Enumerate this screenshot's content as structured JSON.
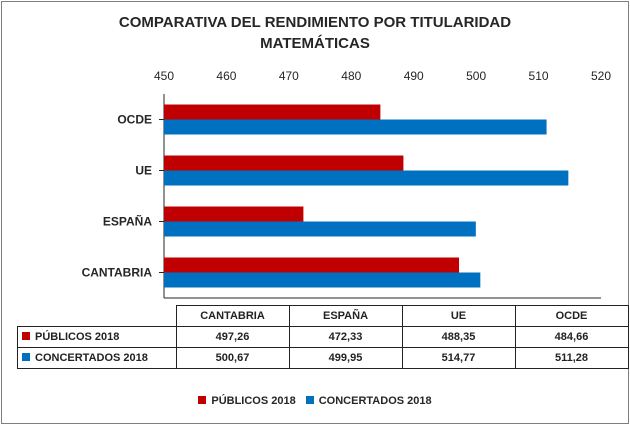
{
  "chart_data": {
    "type": "bar",
    "orientation": "horizontal",
    "title": "COMPARATIVA DEL RENDIMIENTO POR TITULARIDAD",
    "subtitle": "MATEMÁTICAS",
    "categories": [
      "CANTABRIA",
      "ESPAÑA",
      "UE",
      "OCDE"
    ],
    "series": [
      {
        "name": "PÚBLICOS 2018",
        "color": "#c00000",
        "values": [
          497.26,
          472.33,
          488.35,
          484.66
        ],
        "labels": [
          "497,26",
          "472,33",
          "488,35",
          "484,66"
        ]
      },
      {
        "name": "CONCERTADOS 2018",
        "color": "#0070c0",
        "values": [
          500.67,
          499.95,
          514.77,
          511.28
        ],
        "labels": [
          "500,67",
          "499,95",
          "514,77",
          "511,28"
        ]
      }
    ],
    "xlim": [
      450,
      520
    ],
    "xticks": [
      450,
      460,
      470,
      480,
      490,
      500,
      510,
      520
    ],
    "xaxis_position": "top",
    "legend_position": "bottom",
    "data_table": true,
    "grid": false
  }
}
